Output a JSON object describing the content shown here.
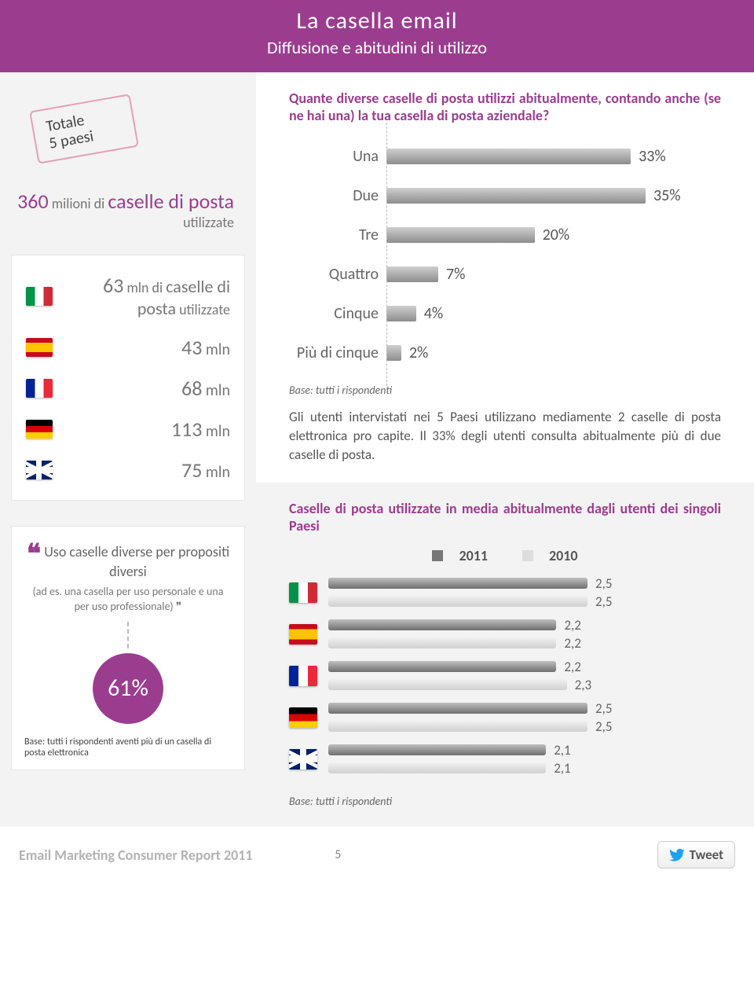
{
  "header": {
    "title": "La casella email",
    "subtitle": "Diffusione e abitudini di utilizzo"
  },
  "stamp": {
    "line1": "Totale",
    "line2": "5 paesi"
  },
  "total_millions": {
    "number": "360",
    "unit": "milioni di",
    "word": "caselle di posta",
    "suffix": "utilizzate"
  },
  "countries": [
    {
      "flag": "it",
      "value": "63",
      "unit": "mln di",
      "label": "caselle di posta",
      "suffix": "utilizzate",
      "featured": true
    },
    {
      "flag": "es",
      "value": "43",
      "unit": "mln"
    },
    {
      "flag": "fr",
      "value": "68",
      "unit": "mln"
    },
    {
      "flag": "de",
      "value": "113",
      "unit": "mln"
    },
    {
      "flag": "uk",
      "value": "75",
      "unit": "mln"
    }
  ],
  "quote": {
    "text": "Uso caselle diverse per propositi diversi",
    "subtext": "(ad es. una casella per uso personale e una per uso professionale)",
    "percent": "61%",
    "base": "Base: tutti i rispondenti aventi più di un casella di posta elettronica"
  },
  "chart1": {
    "title": "Quante diverse caselle di posta utilizzi abitualmente, contando anche (se ne hai una) la tua casella di posta aziendale?",
    "max": 35,
    "rows": [
      {
        "label": "Una",
        "value": 33,
        "text": "33%"
      },
      {
        "label": "Due",
        "value": 35,
        "text": "35%"
      },
      {
        "label": "Tre",
        "value": 20,
        "text": "20%"
      },
      {
        "label": "Quattro",
        "value": 7,
        "text": "7%"
      },
      {
        "label": "Cinque",
        "value": 4,
        "text": "4%"
      },
      {
        "label": "Più di cinque",
        "value": 2,
        "text": "2%"
      }
    ],
    "base": "Base: tutti i rispondenti",
    "body": "Gli utenti intervistati nei 5 Paesi utilizzano mediamente  2 caselle di posta elettronica pro capite. Il 33% degli utenti consulta abitualmente più di due caselle di posta."
  },
  "chart2": {
    "title": "Caselle di posta utilizzate in media abitualmente dagli utenti dei singoli Paesi",
    "legend": {
      "y11": "2011",
      "y10": "2010"
    },
    "max": 2.5,
    "rows": [
      {
        "flag": "it",
        "y11": 2.5,
        "y10": 2.5,
        "t11": "2,5",
        "t10": "2,5"
      },
      {
        "flag": "es",
        "y11": 2.2,
        "y10": 2.2,
        "t11": "2,2",
        "t10": "2,2"
      },
      {
        "flag": "fr",
        "y11": 2.2,
        "y10": 2.3,
        "t11": "2,2",
        "t10": "2,3"
      },
      {
        "flag": "de",
        "y11": 2.5,
        "y10": 2.5,
        "t11": "2,5",
        "t10": "2,5"
      },
      {
        "flag": "uk",
        "y11": 2.1,
        "y10": 2.1,
        "t11": "2,1",
        "t10": "2,1"
      }
    ],
    "base": "Base: tutti i rispondenti"
  },
  "footer": {
    "title": "Email Marketing Consumer Report 2011",
    "page": "5",
    "tweet": "Tweet"
  }
}
